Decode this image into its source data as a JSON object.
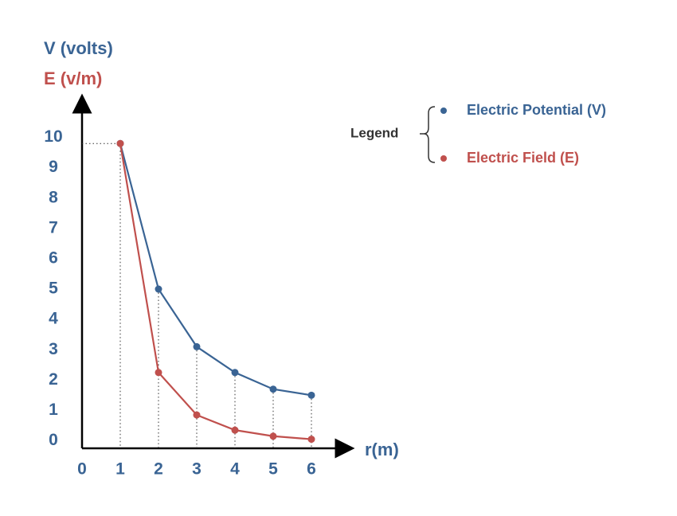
{
  "chart_data": {
    "type": "line",
    "y_title": "V (volts)",
    "y2_title": "E (v/m)",
    "x_title": "r(m)",
    "legend_title": "Legend",
    "x": [
      1,
      2,
      3,
      4,
      5,
      6
    ],
    "series": [
      {
        "name": "Electric Potential (V)",
        "color": "#3a6494",
        "values": [
          9.8,
          5.0,
          3.1,
          2.25,
          1.7,
          1.5
        ]
      },
      {
        "name": "Electric Field (E)",
        "color": "#c0504d",
        "values": [
          9.8,
          2.25,
          0.85,
          0.35,
          0.15,
          0.05
        ]
      }
    ],
    "xlim": [
      0,
      7
    ],
    "xticks": [
      0,
      1,
      2,
      3,
      4,
      5,
      6
    ],
    "ylim": [
      -0.25,
      11.25
    ],
    "yticks": [
      0,
      1,
      2,
      3,
      4,
      5,
      6,
      7,
      8,
      9,
      10
    ],
    "guides": true
  }
}
